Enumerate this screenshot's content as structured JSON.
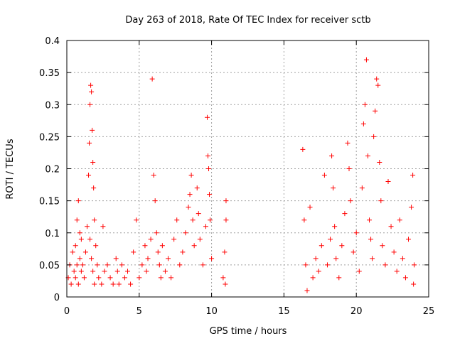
{
  "chart_data": {
    "type": "scatter",
    "title": "Day 263 of 2018, Rate Of TEC Index for receiver sctb",
    "xlabel": "GPS time / hours",
    "ylabel": "ROTI / TECUs",
    "xlim": [
      0,
      25
    ],
    "ylim": [
      0,
      0.4
    ],
    "xticks": [
      0,
      5,
      10,
      15,
      20,
      25
    ],
    "xtick_labels": [
      "0",
      "5",
      "10",
      "15",
      "20",
      "25"
    ],
    "yticks": [
      0,
      0.05,
      0.1,
      0.15,
      0.2,
      0.25,
      0.3,
      0.35,
      0.4
    ],
    "ytick_labels": [
      "0",
      "0.05",
      "0.1",
      "0.15",
      "0.2",
      "0.25",
      "0.3",
      "0.35",
      "0.4"
    ],
    "grid": true,
    "marker": "+",
    "color": "#ff0000",
    "series": [
      {
        "name": "ROTI",
        "points": [
          [
            0.1,
            0.03
          ],
          [
            0.2,
            0.05
          ],
          [
            0.3,
            0.02
          ],
          [
            0.4,
            0.07
          ],
          [
            0.5,
            0.04
          ],
          [
            0.6,
            0.03
          ],
          [
            0.7,
            0.05
          ],
          [
            0.8,
            0.02
          ],
          [
            0.9,
            0.06
          ],
          [
            1.0,
            0.04
          ],
          [
            0.6,
            0.08
          ],
          [
            0.7,
            0.12
          ],
          [
            0.8,
            0.15
          ],
          [
            0.9,
            0.1
          ],
          [
            1.0,
            0.09
          ],
          [
            1.1,
            0.05
          ],
          [
            1.2,
            0.03
          ],
          [
            1.3,
            0.07
          ],
          [
            1.4,
            0.11
          ],
          [
            1.5,
            0.19
          ],
          [
            1.55,
            0.24
          ],
          [
            1.6,
            0.3
          ],
          [
            1.65,
            0.33
          ],
          [
            1.7,
            0.32
          ],
          [
            1.75,
            0.26
          ],
          [
            1.8,
            0.21
          ],
          [
            1.85,
            0.17
          ],
          [
            1.9,
            0.12
          ],
          [
            1.6,
            0.09
          ],
          [
            1.7,
            0.06
          ],
          [
            1.8,
            0.04
          ],
          [
            1.9,
            0.02
          ],
          [
            2.0,
            0.08
          ],
          [
            2.1,
            0.05
          ],
          [
            2.2,
            0.03
          ],
          [
            2.4,
            0.02
          ],
          [
            2.5,
            0.11
          ],
          [
            2.6,
            0.04
          ],
          [
            2.8,
            0.05
          ],
          [
            3.0,
            0.03
          ],
          [
            3.2,
            0.02
          ],
          [
            3.4,
            0.06
          ],
          [
            3.5,
            0.04
          ],
          [
            3.6,
            0.02
          ],
          [
            3.8,
            0.05
          ],
          [
            4.0,
            0.03
          ],
          [
            4.2,
            0.04
          ],
          [
            4.4,
            0.02
          ],
          [
            4.6,
            0.07
          ],
          [
            4.8,
            0.12
          ],
          [
            5.0,
            0.03
          ],
          [
            5.2,
            0.05
          ],
          [
            5.4,
            0.08
          ],
          [
            5.5,
            0.04
          ],
          [
            5.6,
            0.06
          ],
          [
            5.8,
            0.09
          ],
          [
            5.9,
            0.34
          ],
          [
            6.0,
            0.19
          ],
          [
            6.1,
            0.15
          ],
          [
            6.2,
            0.1
          ],
          [
            6.3,
            0.07
          ],
          [
            6.4,
            0.05
          ],
          [
            6.5,
            0.03
          ],
          [
            6.6,
            0.08
          ],
          [
            6.8,
            0.04
          ],
          [
            7.0,
            0.06
          ],
          [
            7.2,
            0.03
          ],
          [
            7.4,
            0.09
          ],
          [
            7.6,
            0.12
          ],
          [
            7.8,
            0.05
          ],
          [
            8.0,
            0.07
          ],
          [
            8.2,
            0.1
          ],
          [
            8.4,
            0.14
          ],
          [
            8.5,
            0.16
          ],
          [
            8.6,
            0.19
          ],
          [
            8.7,
            0.12
          ],
          [
            8.8,
            0.08
          ],
          [
            9.0,
            0.17
          ],
          [
            9.1,
            0.13
          ],
          [
            9.2,
            0.09
          ],
          [
            9.4,
            0.05
          ],
          [
            9.6,
            0.11
          ],
          [
            9.7,
            0.28
          ],
          [
            9.75,
            0.22
          ],
          [
            9.8,
            0.2
          ],
          [
            9.85,
            0.16
          ],
          [
            9.9,
            0.12
          ],
          [
            10.0,
            0.06
          ],
          [
            10.8,
            0.03
          ],
          [
            10.9,
            0.07
          ],
          [
            11.0,
            0.15
          ],
          [
            11.0,
            0.12
          ],
          [
            10.95,
            0.02
          ],
          [
            16.3,
            0.23
          ],
          [
            16.4,
            0.12
          ],
          [
            16.5,
            0.05
          ],
          [
            16.6,
            0.01
          ],
          [
            16.8,
            0.14
          ],
          [
            17.0,
            0.03
          ],
          [
            17.2,
            0.06
          ],
          [
            17.4,
            0.04
          ],
          [
            17.6,
            0.08
          ],
          [
            17.8,
            0.19
          ],
          [
            18.0,
            0.05
          ],
          [
            18.2,
            0.09
          ],
          [
            18.3,
            0.22
          ],
          [
            18.4,
            0.17
          ],
          [
            18.5,
            0.11
          ],
          [
            18.6,
            0.06
          ],
          [
            18.8,
            0.03
          ],
          [
            19.0,
            0.08
          ],
          [
            19.2,
            0.13
          ],
          [
            19.4,
            0.24
          ],
          [
            19.5,
            0.2
          ],
          [
            19.6,
            0.15
          ],
          [
            19.8,
            0.07
          ],
          [
            20.0,
            0.1
          ],
          [
            20.2,
            0.04
          ],
          [
            20.4,
            0.17
          ],
          [
            20.5,
            0.27
          ],
          [
            20.6,
            0.3
          ],
          [
            20.7,
            0.37
          ],
          [
            20.8,
            0.22
          ],
          [
            20.9,
            0.12
          ],
          [
            21.0,
            0.09
          ],
          [
            21.1,
            0.06
          ],
          [
            21.2,
            0.25
          ],
          [
            21.3,
            0.29
          ],
          [
            21.4,
            0.34
          ],
          [
            21.5,
            0.33
          ],
          [
            21.6,
            0.21
          ],
          [
            21.7,
            0.15
          ],
          [
            21.8,
            0.08
          ],
          [
            22.0,
            0.05
          ],
          [
            22.2,
            0.18
          ],
          [
            22.4,
            0.11
          ],
          [
            22.6,
            0.07
          ],
          [
            22.8,
            0.04
          ],
          [
            23.0,
            0.12
          ],
          [
            23.2,
            0.06
          ],
          [
            23.4,
            0.03
          ],
          [
            23.6,
            0.09
          ],
          [
            23.8,
            0.14
          ],
          [
            23.9,
            0.19
          ],
          [
            24.0,
            0.05
          ],
          [
            23.95,
            0.02
          ]
        ]
      }
    ]
  }
}
